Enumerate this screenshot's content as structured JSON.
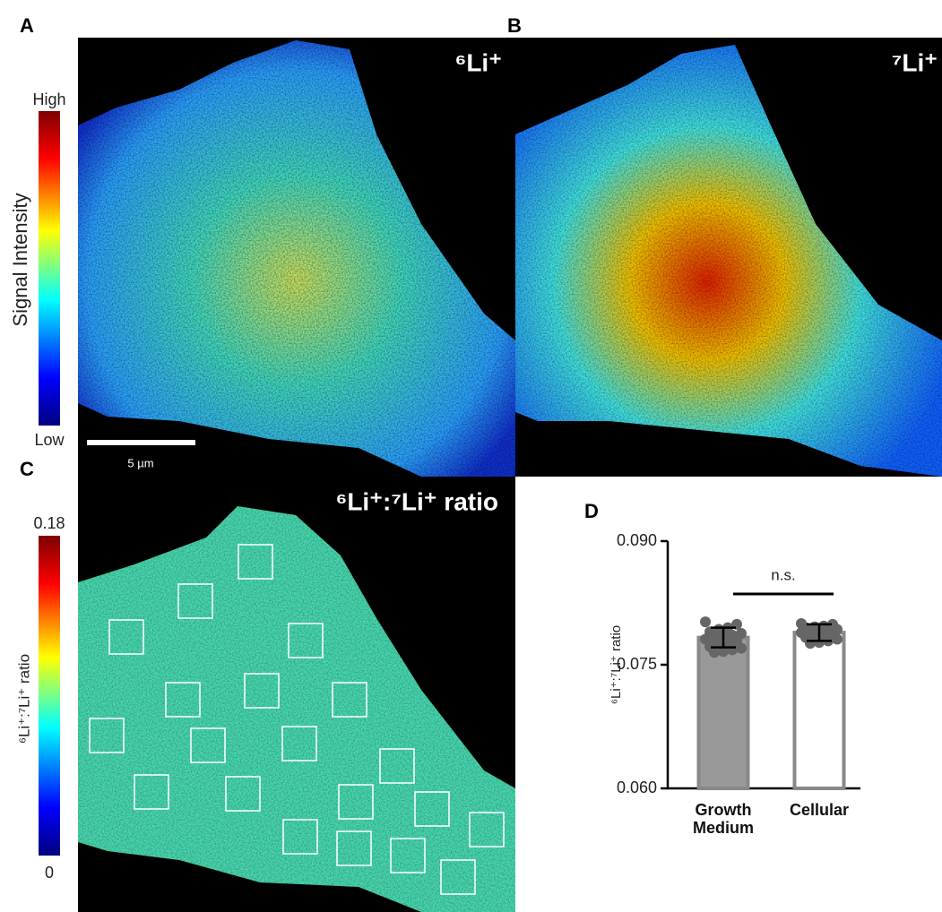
{
  "figure": {
    "panel_labels": [
      "A",
      "B",
      "C",
      "D"
    ],
    "titles": [
      "⁶Li⁺",
      "⁷Li⁺",
      "⁶Li⁺:⁷Li⁺ ratio"
    ],
    "intensity_bar": {
      "high": "High",
      "low": "Low",
      "label": "Signal Intensity"
    },
    "scale_bar": "5 µm",
    "ratio_bar": {
      "ticks": [
        0.18,
        0
      ],
      "label": "⁶Li⁺:⁷Li⁺ ratio"
    }
  },
  "chart_data": {
    "type": "bar",
    "categories": [
      "Growth Medium",
      "Cellular"
    ],
    "values": [
      0.0783,
      0.0789
    ],
    "errors": [
      0.0012,
      0.001
    ],
    "colors": [
      "#999999",
      "#ffffff"
    ],
    "points": [
      [
        0.0802,
        0.0799,
        0.0795,
        0.0793,
        0.079,
        0.0788,
        0.0786,
        0.0784,
        0.0783,
        0.0781,
        0.0779,
        0.0777,
        0.0775,
        0.0772,
        0.077,
        0.0768,
        0.0766,
        0.0765
      ],
      [
        0.08,
        0.0799,
        0.0797,
        0.0796,
        0.0795,
        0.0793,
        0.0792,
        0.0791,
        0.079,
        0.0789,
        0.0788,
        0.0787,
        0.0785,
        0.0783,
        0.0781,
        0.0779,
        0.0777,
        0.0776
      ]
    ],
    "annotation": "n.s.",
    "ylabel": "⁶Li⁺:⁷Li⁺ ratio",
    "ylim": [
      0.06,
      0.09
    ],
    "yticks": [
      {
        "value": 0.06,
        "label": "0.060"
      },
      {
        "value": 0.075,
        "label": "0.075"
      },
      {
        "value": 0.09,
        "label": "0.090"
      }
    ]
  }
}
